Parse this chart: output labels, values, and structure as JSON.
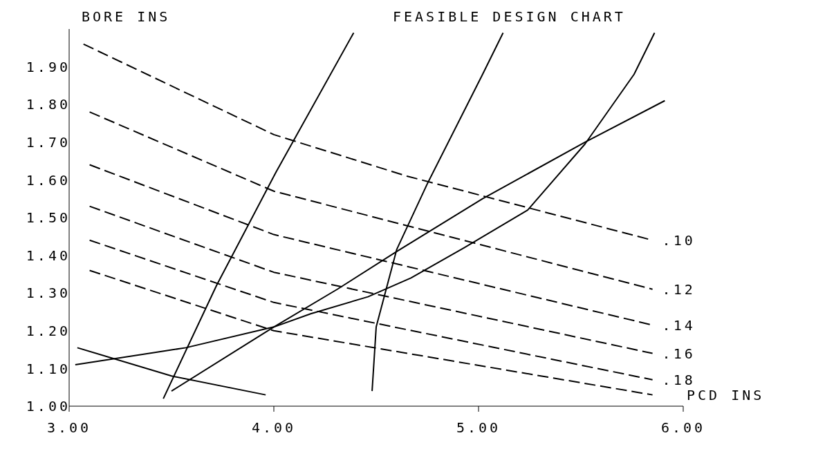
{
  "chart_data": {
    "type": "line",
    "title": "FEASIBLE DESIGN CHART",
    "xlabel": "PCD INS",
    "ylabel": "BORE INS",
    "xlim": [
      3,
      6
    ],
    "xticks": [
      {
        "value": 3,
        "label": "3.00"
      },
      {
        "value": 4,
        "label": "4.00"
      },
      {
        "value": 5,
        "label": "5.00"
      },
      {
        "value": 6,
        "label": "6.00"
      }
    ],
    "ylim": [
      1,
      2
    ],
    "yticks": [
      {
        "value": 1,
        "label": "1.00"
      },
      {
        "value": 1.1,
        "label": "1.10"
      },
      {
        "value": 1.2,
        "label": "1.20"
      },
      {
        "value": 1.3,
        "label": "1.30"
      },
      {
        "value": 1.4,
        "label": "1.40"
      },
      {
        "value": 1.5,
        "label": "1.50"
      },
      {
        "value": 1.6,
        "label": "1.60"
      },
      {
        "value": 1.7,
        "label": "1.70"
      },
      {
        "value": 1.8,
        "label": "1.80"
      },
      {
        "value": 1.9,
        "label": "1.90"
      }
    ],
    "grid": false,
    "legend": false,
    "series": [
      {
        "name": ".10",
        "color": "#000000",
        "line_style": "dashed",
        "x": [
          3.07,
          4.0,
          4.65,
          5.85
        ],
        "values": [
          1.96,
          1.72,
          1.61,
          1.44
        ]
      },
      {
        "name": ".12",
        "color": "#000000",
        "line_style": "dashed",
        "x": [
          3.1,
          4.0,
          5.85
        ],
        "values": [
          1.78,
          1.57,
          1.31
        ]
      },
      {
        "name": ".14",
        "color": "#000000",
        "line_style": "dashed",
        "x": [
          3.1,
          4.0,
          5.85
        ],
        "values": [
          1.64,
          1.455,
          1.215
        ]
      },
      {
        "name": ".16",
        "color": "#000000",
        "line_style": "dashed",
        "x": [
          3.1,
          4.0,
          5.85
        ],
        "values": [
          1.53,
          1.355,
          1.14
        ]
      },
      {
        "name": ".18",
        "color": "#000000",
        "line_style": "dashed",
        "x": [
          3.1,
          4.0,
          5.85
        ],
        "values": [
          1.44,
          1.275,
          1.07
        ]
      },
      {
        "color": "#000000",
        "line_style": "dashed",
        "x": [
          3.1,
          4.0,
          5.85
        ],
        "values": [
          1.36,
          1.2,
          1.03
        ]
      },
      {
        "color": "#000000",
        "line_style": "solid",
        "x": [
          3.46,
          3.72,
          4.01,
          4.39
        ],
        "values": [
          1.02,
          1.32,
          1.62,
          1.99
        ]
      },
      {
        "color": "#000000",
        "line_style": "solid",
        "x": [
          4.48,
          4.5,
          4.6,
          4.75,
          5.02,
          5.12
        ],
        "values": [
          1.04,
          1.21,
          1.415,
          1.59,
          1.88,
          1.99
        ]
      },
      {
        "color": "#000000",
        "line_style": "solid",
        "x": [
          3.03,
          3.57,
          4.0,
          4.18,
          4.46,
          4.67,
          4.93,
          5.24,
          5.52,
          5.76,
          5.86
        ],
        "values": [
          1.11,
          1.155,
          1.21,
          1.245,
          1.29,
          1.34,
          1.42,
          1.52,
          1.695,
          1.88,
          1.99
        ]
      },
      {
        "color": "#000000",
        "line_style": "solid",
        "x": [
          3.5,
          4.0,
          4.31,
          4.6,
          5.02,
          5.52,
          5.91
        ],
        "values": [
          1.04,
          1.21,
          1.31,
          1.41,
          1.55,
          1.7,
          1.81
        ]
      },
      {
        "color": "#000000",
        "line_style": "solid",
        "x": [
          3.04,
          3.5,
          3.96
        ],
        "values": [
          1.155,
          1.08,
          1.03
        ]
      }
    ]
  }
}
